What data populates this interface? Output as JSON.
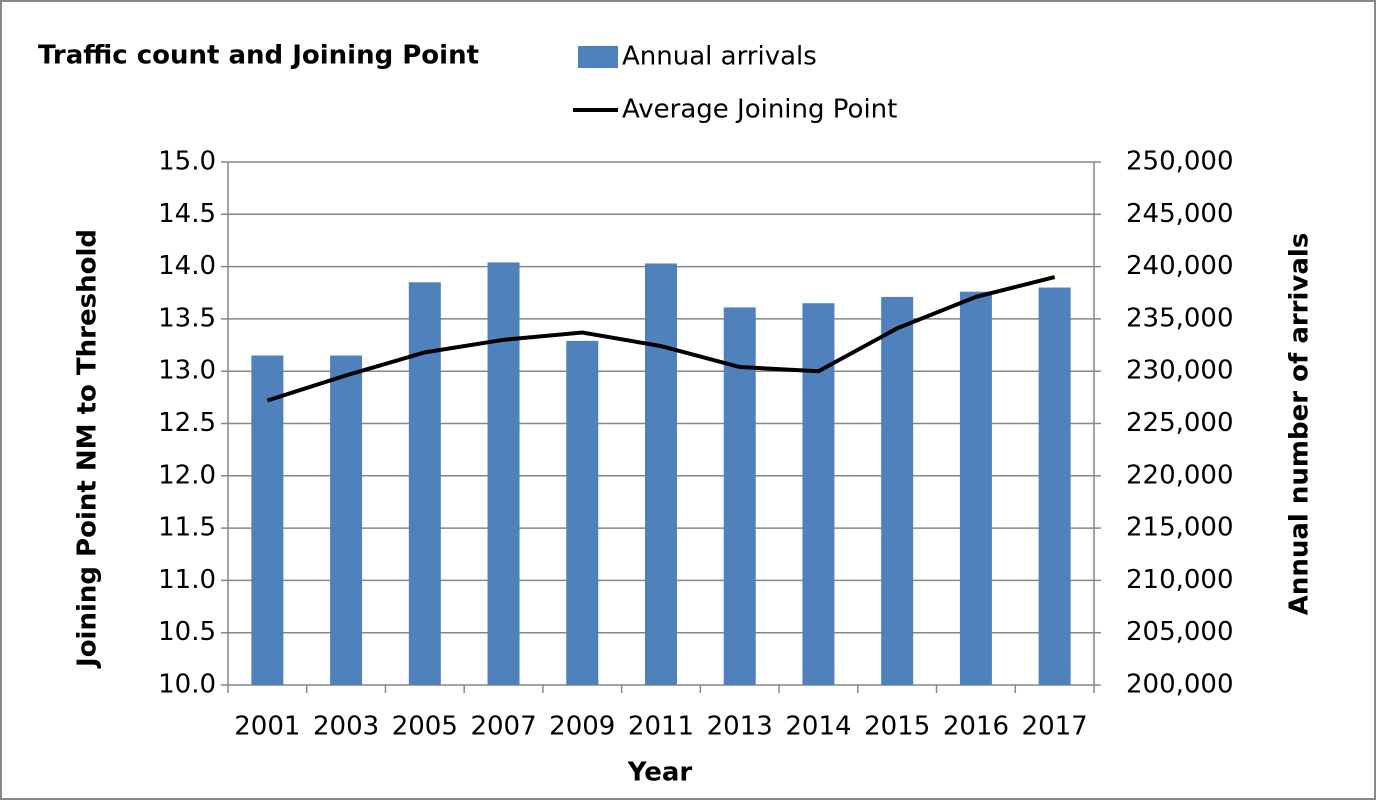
{
  "chart_data": {
    "type": "bar-line",
    "title": "Traffic count and Joining Point",
    "x_label": "Year",
    "y_label": "Joining Point NM to Threshold",
    "y2_label": "Annual number of arrivals",
    "categories": [
      "2001",
      "2003",
      "2005",
      "2007",
      "2009",
      "2011",
      "2013",
      "2014",
      "2015",
      "2016",
      "2017"
    ],
    "series": [
      {
        "name": "Annual arrivals",
        "type": "bar",
        "axis": "y2",
        "color": "#4f81bd",
        "values": [
          231500,
          231500,
          238500,
          240400,
          232900,
          240300,
          236100,
          236500,
          237100,
          237600,
          238000
        ]
      },
      {
        "name": "Average Joining Point",
        "type": "line",
        "axis": "y",
        "color": "#000000",
        "values": [
          12.72,
          12.96,
          13.18,
          13.3,
          13.37,
          13.24,
          13.04,
          13.0,
          13.41,
          13.71,
          13.9
        ]
      }
    ],
    "ylim": [
      10,
      15
    ],
    "yticks": [
      {
        "value": 10,
        "label": "10.0"
      },
      {
        "value": 10.5,
        "label": "10.5"
      },
      {
        "value": 11,
        "label": "11.0"
      },
      {
        "value": 11.5,
        "label": "11.5"
      },
      {
        "value": 12,
        "label": "12.0"
      },
      {
        "value": 12.5,
        "label": "12.5"
      },
      {
        "value": 13,
        "label": "13.0"
      },
      {
        "value": 13.5,
        "label": "13.5"
      },
      {
        "value": 14,
        "label": "14.0"
      },
      {
        "value": 14.5,
        "label": "14.5"
      },
      {
        "value": 15,
        "label": "15.0"
      }
    ],
    "y2lim": [
      200000,
      250000
    ],
    "y2ticks": [
      {
        "value": 200000,
        "label": "200,000"
      },
      {
        "value": 205000,
        "label": "205,000"
      },
      {
        "value": 210000,
        "label": "210,000"
      },
      {
        "value": 215000,
        "label": "215,000"
      },
      {
        "value": 220000,
        "label": "220,000"
      },
      {
        "value": 225000,
        "label": "225,000"
      },
      {
        "value": 230000,
        "label": "230,000"
      },
      {
        "value": 235000,
        "label": "235,000"
      },
      {
        "value": 240000,
        "label": "240,000"
      },
      {
        "value": 245000,
        "label": "245,000"
      },
      {
        "value": 250000,
        "label": "250,000"
      }
    ],
    "grid": true
  }
}
